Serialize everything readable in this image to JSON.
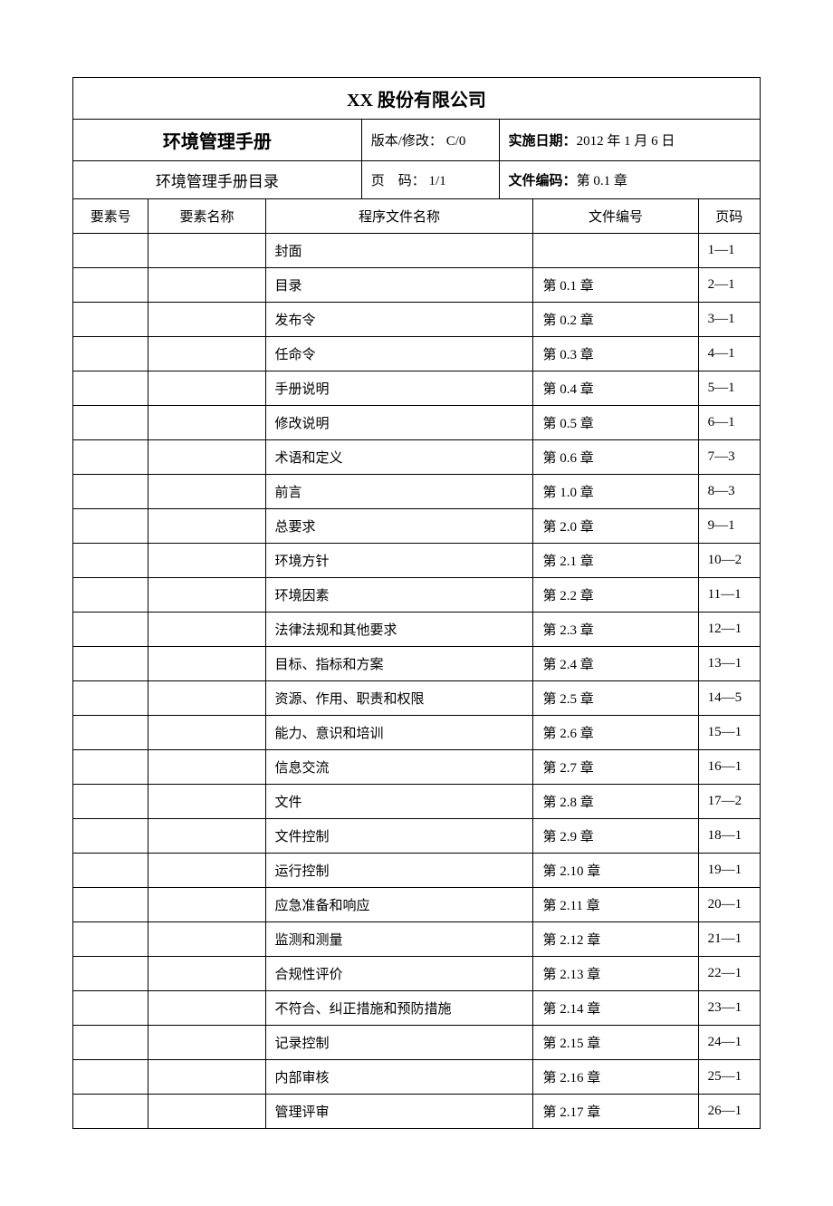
{
  "header": {
    "company_name": "XX 股份有限公司",
    "manual_title": "环境管理手册",
    "manual_subtitle": "环境管理手册目录",
    "version_label": "版本/修改：",
    "version_value": "C/0",
    "page_label": "页　码：",
    "page_value": "1/1",
    "date_label": "实施日期：",
    "date_value": "2012 年 1 月 6 日",
    "code_label": "文件编码：",
    "code_value": "第 0.1 章"
  },
  "columns": {
    "element_no": "要素号",
    "element_name": "要素名称",
    "doc_name": "程序文件名称",
    "doc_code": "文件编号",
    "page_num": "页码"
  },
  "rows": [
    {
      "element_no": "",
      "element_name": "",
      "doc_name": "封面",
      "doc_code": "",
      "page_num": "1—1"
    },
    {
      "element_no": "",
      "element_name": "",
      "doc_name": "目录",
      "doc_code": "第 0.1 章",
      "page_num": "2—1"
    },
    {
      "element_no": "",
      "element_name": "",
      "doc_name": "发布令",
      "doc_code": "第 0.2 章",
      "page_num": "3—1"
    },
    {
      "element_no": "",
      "element_name": "",
      "doc_name": "任命令",
      "doc_code": "第 0.3 章",
      "page_num": "4—1"
    },
    {
      "element_no": "",
      "element_name": "",
      "doc_name": "手册说明",
      "doc_code": "第 0.4 章",
      "page_num": "5—1"
    },
    {
      "element_no": "",
      "element_name": "",
      "doc_name": "修改说明",
      "doc_code": "第 0.5 章",
      "page_num": "6—1"
    },
    {
      "element_no": "",
      "element_name": "",
      "doc_name": "术语和定义",
      "doc_code": "第 0.6 章",
      "page_num": "7—3"
    },
    {
      "element_no": "",
      "element_name": "",
      "doc_name": "前言",
      "doc_code": "第 1.0 章",
      "page_num": "8—3"
    },
    {
      "element_no": "",
      "element_name": "",
      "doc_name": "总要求",
      "doc_code": "第 2.0 章",
      "page_num": "9—1"
    },
    {
      "element_no": "",
      "element_name": "",
      "doc_name": "环境方针",
      "doc_code": "第 2.1 章",
      "page_num": "10—2"
    },
    {
      "element_no": "",
      "element_name": "",
      "doc_name": "环境因素",
      "doc_code": "第 2.2 章",
      "page_num": "11—1"
    },
    {
      "element_no": "",
      "element_name": "",
      "doc_name": "法律法规和其他要求",
      "doc_code": "第 2.3 章",
      "page_num": "12—1"
    },
    {
      "element_no": "",
      "element_name": "",
      "doc_name": "目标、指标和方案",
      "doc_code": "第 2.4 章",
      "page_num": "13—1"
    },
    {
      "element_no": "",
      "element_name": "",
      "doc_name": "资源、作用、职责和权限",
      "doc_code": "第 2.5 章",
      "page_num": "14—5"
    },
    {
      "element_no": "",
      "element_name": "",
      "doc_name": "能力、意识和培训",
      "doc_code": "第 2.6 章",
      "page_num": "15—1"
    },
    {
      "element_no": "",
      "element_name": "",
      "doc_name": "信息交流",
      "doc_code": "第 2.7 章",
      "page_num": "16—1"
    },
    {
      "element_no": "",
      "element_name": "",
      "doc_name": "文件",
      "doc_code": "第 2.8 章",
      "page_num": "17—2"
    },
    {
      "element_no": "",
      "element_name": "",
      "doc_name": "文件控制",
      "doc_code": "第 2.9 章",
      "page_num": "18—1"
    },
    {
      "element_no": "",
      "element_name": "",
      "doc_name": "运行控制",
      "doc_code": "第 2.10 章",
      "page_num": "19—1"
    },
    {
      "element_no": "",
      "element_name": "",
      "doc_name": "应急准备和响应",
      "doc_code": "第 2.11 章",
      "page_num": "20—1"
    },
    {
      "element_no": "",
      "element_name": "",
      "doc_name": "监测和测量",
      "doc_code": "第 2.12 章",
      "page_num": "21—1"
    },
    {
      "element_no": "",
      "element_name": "",
      "doc_name": "合规性评价",
      "doc_code": "第 2.13 章",
      "page_num": "22—1"
    },
    {
      "element_no": "",
      "element_name": "",
      "doc_name": "不符合、纠正措施和预防措施",
      "doc_code": "第 2.14 章",
      "page_num": "23—1"
    },
    {
      "element_no": "",
      "element_name": "",
      "doc_name": "记录控制",
      "doc_code": "第 2.15 章",
      "page_num": "24—1"
    },
    {
      "element_no": "",
      "element_name": "",
      "doc_name": "内部审核",
      "doc_code": "第 2.16 章",
      "page_num": "25—1"
    },
    {
      "element_no": "",
      "element_name": "",
      "doc_name": "管理评审",
      "doc_code": "第 2.17 章",
      "page_num": "26—1"
    }
  ]
}
